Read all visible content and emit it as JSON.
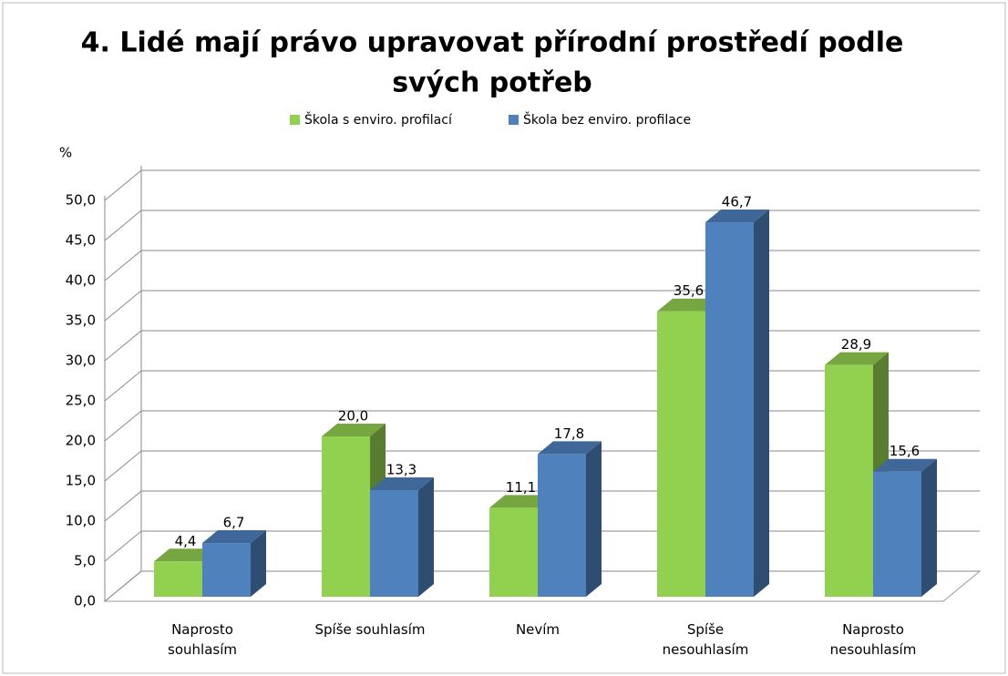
{
  "chart_data": {
    "type": "bar3d",
    "title": [
      "4. Lidé mají právo upravovat přírodní prostředí podle",
      "svých potřeb"
    ],
    "y_label": "%",
    "categories": [
      "Naprosto souhlasím",
      "Spíše souhlasím",
      "Nevím",
      "Spíše nesouhlasím",
      "Naprosto nesouhlasím"
    ],
    "series": [
      {
        "name": "Škola s enviro. profilací",
        "color": "#92d050",
        "values": [
          4.4,
          20.0,
          11.1,
          35.6,
          28.9
        ],
        "value_labels": [
          "4,4",
          "20,0",
          "11,1",
          "35,6",
          "28,9"
        ]
      },
      {
        "name": "Škola bez enviro. profilace",
        "color": "#4f81bd",
        "values": [
          6.7,
          13.3,
          17.8,
          46.7,
          15.6
        ],
        "value_labels": [
          "6,7",
          "13,3",
          "17,8",
          "46,7",
          "15,6"
        ]
      }
    ],
    "ylim": [
      0,
      50
    ],
    "yticks": [
      {
        "value": 0,
        "label": "0,0"
      },
      {
        "value": 5,
        "label": "5,0"
      },
      {
        "value": 10,
        "label": "10,0"
      },
      {
        "value": 15,
        "label": "15,0"
      },
      {
        "value": 20,
        "label": "20,0"
      },
      {
        "value": 25,
        "label": "25,0"
      },
      {
        "value": 30,
        "label": "30,0"
      },
      {
        "value": 35,
        "label": "35,0"
      },
      {
        "value": 40,
        "label": "40,0"
      },
      {
        "value": 45,
        "label": "45,0"
      },
      {
        "value": 50,
        "label": "50,0"
      }
    ],
    "grid": true,
    "legend": "top"
  }
}
